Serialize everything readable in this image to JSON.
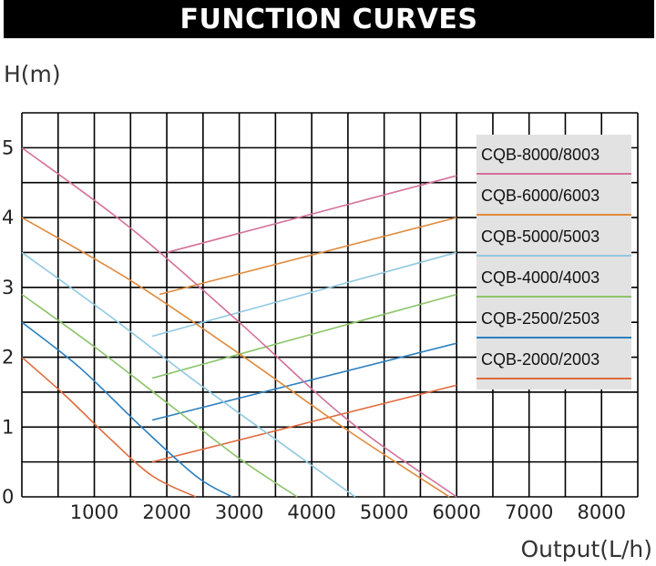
{
  "chart_data": {
    "type": "line",
    "title": "FUNCTION CURVES",
    "ylabel": "H(m)",
    "xlabel": "Output(L/h)",
    "xlim": [
      0,
      8500
    ],
    "ylim": [
      0,
      5.5
    ],
    "x_ticks": [
      1000,
      2000,
      3000,
      4000,
      5000,
      6000,
      7000,
      8000
    ],
    "x_tick_labels": [
      "1000",
      "2000",
      "3000",
      "4000",
      "5000",
      "6000",
      "7000",
      "8000"
    ],
    "y_ticks": [
      0,
      1,
      2,
      3,
      4,
      5
    ],
    "y_tick_labels": [
      "0",
      "1",
      "2",
      "3",
      "4",
      "5"
    ],
    "grid": true,
    "legend_position": "right",
    "series": [
      {
        "name": "CQB-8000/8003",
        "color": "#d4709a",
        "x": [
          0,
          1500,
          3000,
          4500,
          6000
        ],
        "y": [
          5.0,
          3.85,
          2.5,
          1.1,
          0
        ]
      },
      {
        "name": "CQB-6000/6003",
        "color": "#e08a3c",
        "x": [
          0,
          1500,
          3000,
          4500,
          5900
        ],
        "y": [
          4.0,
          3.1,
          2.05,
          0.95,
          0
        ]
      },
      {
        "name": "CQB-5000/5003",
        "color": "#8fc8e0",
        "x": [
          0,
          1200,
          2400,
          3600,
          4600
        ],
        "y": [
          3.5,
          2.6,
          1.65,
          0.75,
          0
        ]
      },
      {
        "name": "CQB-4000/4003",
        "color": "#8cc46a",
        "x": [
          0,
          1000,
          2000,
          3000,
          3800
        ],
        "y": [
          2.9,
          2.15,
          1.35,
          0.55,
          0
        ]
      },
      {
        "name": "CQB-2500/2503",
        "color": "#2a7fc0",
        "x": [
          0,
          800,
          1600,
          2400,
          2900
        ],
        "y": [
          2.5,
          1.85,
          1.05,
          0.3,
          0
        ]
      },
      {
        "name": "CQB-2000/2003",
        "color": "#e06a3c",
        "x": [
          0,
          600,
          1200,
          1800,
          2400
        ],
        "y": [
          2.0,
          1.45,
          0.85,
          0.3,
          0
        ]
      }
    ],
    "envelope_lines": [
      {
        "color": "#d4709a",
        "from": [
          2000,
          3.5
        ],
        "to": [
          6000,
          4.6
        ]
      },
      {
        "color": "#e08a3c",
        "from": [
          1900,
          2.9
        ],
        "to": [
          6000,
          4.0
        ]
      },
      {
        "color": "#8fc8e0",
        "from": [
          1800,
          2.3
        ],
        "to": [
          6000,
          3.5
        ]
      },
      {
        "color": "#8cc46a",
        "from": [
          1800,
          1.7
        ],
        "to": [
          6000,
          2.9
        ]
      },
      {
        "color": "#2a7fc0",
        "from": [
          1800,
          1.1
        ],
        "to": [
          6000,
          2.2
        ]
      },
      {
        "color": "#e06a3c",
        "from": [
          1800,
          0.5
        ],
        "to": [
          6000,
          1.6
        ]
      }
    ]
  }
}
